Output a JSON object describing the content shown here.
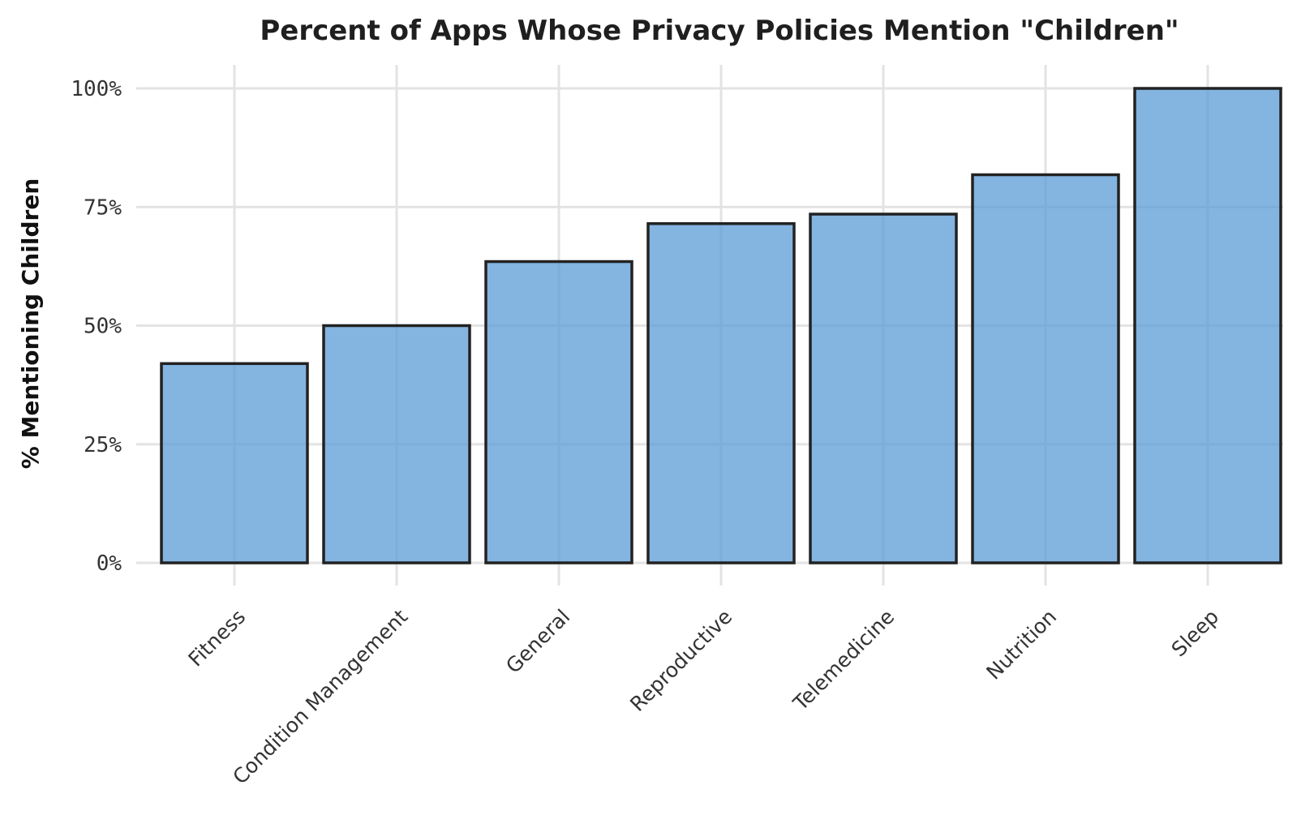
{
  "chart_data": {
    "type": "bar",
    "title": "Percent of Apps Whose Privacy Policies Mention \"Children\"",
    "xlabel": "",
    "ylabel": "% Mentioning Children",
    "categories": [
      "Fitness",
      "Condition Management",
      "General",
      "Reproductive",
      "Telemedicine",
      "Nutrition",
      "Sleep"
    ],
    "values": [
      42,
      50,
      63.5,
      71.5,
      73.5,
      81.8,
      100
    ],
    "ylim": [
      0,
      100
    ],
    "yticks": [
      0,
      25,
      50,
      75,
      100
    ],
    "ytick_labels": [
      "0%",
      "25%",
      "50%",
      "75%",
      "100%"
    ],
    "grid": true,
    "bar_color": "#5b9bd5",
    "edge_color": "#222222"
  }
}
